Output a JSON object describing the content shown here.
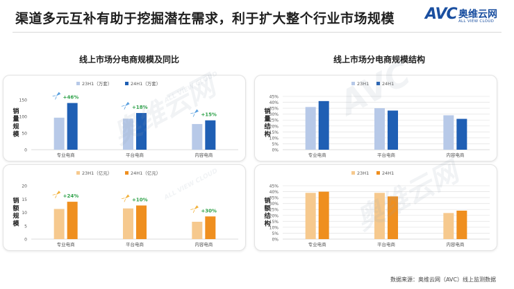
{
  "header": {
    "title": "渠道多元互补有助于挖掘潜在需求，利于扩大整个行业市场规模"
  },
  "logo": {
    "mark": "AVC",
    "cn": "奥维云网",
    "en": "ALL VIEW CLOUD"
  },
  "sections": {
    "left_title": "线上市场分电商规模及同比",
    "right_title": "线上市场分电商规模结构"
  },
  "watermark": {
    "cn": "奥维云网",
    "en": "ALL VIEW CLOUD",
    "mark": "AVC"
  },
  "source": "数据来源：奥维云网（AVC）线上监测数据",
  "colors": {
    "blue_light": "#b7c9e8",
    "blue_dark": "#1f5fb4",
    "orange_light": "#f6c98e",
    "orange_dark": "#ef8f1f",
    "growth_text": "#2fa24a",
    "rocket_blue": "#5aa0df",
    "rocket_orange": "#f2b13b",
    "axis_text": "#555555",
    "grid": "#e6e6e6"
  },
  "chart_data": [
    {
      "id": "volume",
      "type": "bar",
      "ylabel": "销量规模",
      "categories": [
        "专业电商",
        "平台电商",
        "内容电商"
      ],
      "series": [
        {
          "name": "23H1（万套）",
          "values": [
            96,
            93,
            77
          ]
        },
        {
          "name": "24H1（万套）",
          "values": [
            140,
            110,
            88
          ]
        }
      ],
      "growth": [
        "+46%",
        "+18%",
        "+15%"
      ],
      "yticks": [
        "0",
        "50",
        "100",
        "150"
      ],
      "ylim": [
        0,
        160
      ],
      "legend": "top-center",
      "grid": false
    },
    {
      "id": "value",
      "type": "bar",
      "ylabel": "销额规模",
      "categories": [
        "专业电商",
        "平台电商",
        "内容电商"
      ],
      "series": [
        {
          "name": "23H1（亿元）",
          "values": [
            11.3,
            11.5,
            6.5
          ]
        },
        {
          "name": "24H1（亿元）",
          "values": [
            14.0,
            12.6,
            8.5
          ]
        }
      ],
      "growth": [
        "+24%",
        "+10%",
        "+30%"
      ],
      "yticks": [
        "0",
        "5",
        "10",
        "15",
        "20"
      ],
      "ylim": [
        0,
        20
      ],
      "legend": "top-center",
      "grid": false
    },
    {
      "id": "volume_share",
      "type": "bar",
      "ylabel": "销量结构",
      "categories": [
        "专业电商",
        "平台电商",
        "内容电商"
      ],
      "series": [
        {
          "name": "23H1",
          "values": [
            36,
            35,
            29
          ]
        },
        {
          "name": "24H1",
          "values": [
            41,
            33,
            26
          ]
        }
      ],
      "yticks": [
        "0%",
        "5%",
        "10%",
        "15%",
        "20%",
        "25%",
        "30%",
        "35%",
        "40%",
        "45%"
      ],
      "ylim": [
        0,
        45
      ],
      "legend": "top-center",
      "grid": true
    },
    {
      "id": "value_share",
      "type": "bar",
      "ylabel": "销额结构",
      "categories": [
        "专业电商",
        "平台电商",
        "内容电商"
      ],
      "series": [
        {
          "name": "23H1",
          "values": [
            39,
            39,
            22
          ]
        },
        {
          "name": "24H1",
          "values": [
            40,
            36,
            24
          ]
        }
      ],
      "yticks": [
        "0%",
        "5%",
        "10%",
        "15%",
        "20%",
        "25%",
        "30%",
        "35%",
        "40%",
        "45%"
      ],
      "ylim": [
        0,
        45
      ],
      "legend": "top-center",
      "grid": true
    }
  ]
}
